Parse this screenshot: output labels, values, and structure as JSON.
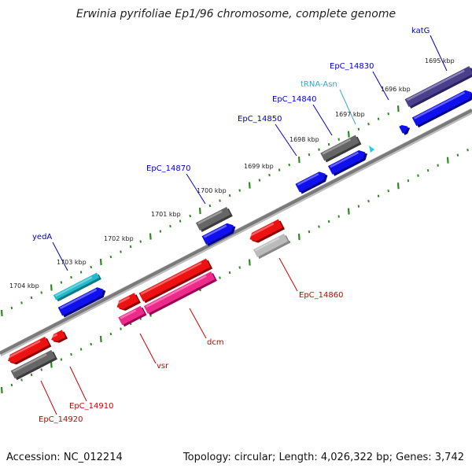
{
  "title": "Erwinia pyrifoliae Ep1/96 chromosome, complete genome",
  "footer": {
    "accession": "Accession: NC_012214",
    "summary": "Topology: circular; Length: 4,026,322 bp; Genes: 3,742"
  },
  "colors": {
    "backbone": "#777777",
    "tick_dots": "#2e8b22",
    "forward_label": "#0000cc",
    "reverse_label": "#cc0000",
    "trna_label": "#33aacc"
  },
  "ticks": [
    "1695 kbp",
    "1696 kbp",
    "1697 kbp",
    "1698 kbp",
    "1699 kbp",
    "1700 kbp",
    "1701 kbp",
    "1702 kbp",
    "1703 kbp",
    "1704 kbp"
  ],
  "forward_genes": [
    {
      "name": "katG",
      "kind": "gene"
    },
    {
      "name": "EpC_14830",
      "kind": "gene"
    },
    {
      "name": "tRNA-Asn",
      "kind": "trna"
    },
    {
      "name": "EpC_14840",
      "kind": "gene"
    },
    {
      "name": "EpC_14850",
      "kind": "gene"
    },
    {
      "name": "EpC_14870",
      "kind": "gene"
    },
    {
      "name": "yedA",
      "kind": "gene"
    }
  ],
  "reverse_genes": [
    {
      "name": "EpC_14860",
      "kind": "gene"
    },
    {
      "name": "dcm",
      "kind": "gene"
    },
    {
      "name": "vsr",
      "kind": "gene"
    },
    {
      "name": "EpC_14910",
      "kind": "gene"
    },
    {
      "name": "EpC_14920",
      "kind": "gene"
    }
  ]
}
